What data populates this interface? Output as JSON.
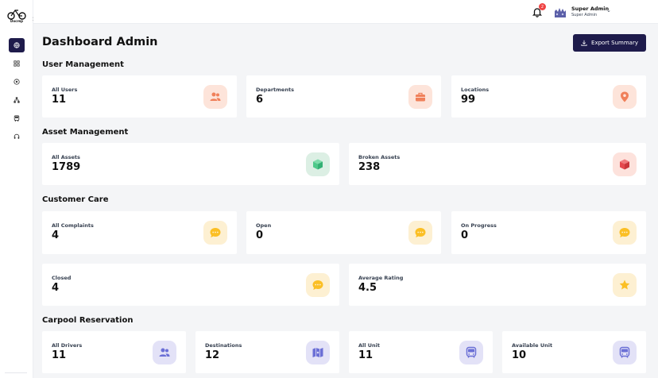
{
  "app": {
    "logo_text": "Docrep"
  },
  "topbar": {
    "notification_count": "2",
    "user_name": "Super Admin",
    "user_role": "Super Admin"
  },
  "header": {
    "title": "Dashboard Admin",
    "export_label": "Export Summary"
  },
  "sections": {
    "user_management": {
      "title": "User Management",
      "cards": [
        {
          "label": "All Users",
          "value": "11",
          "icon": "users-icon"
        },
        {
          "label": "Departments",
          "value": "6",
          "icon": "briefcase-icon"
        },
        {
          "label": "Locations",
          "value": "99",
          "icon": "location-pin-icon"
        }
      ]
    },
    "asset_management": {
      "title": "Asset Management",
      "cards": [
        {
          "label": "All Assets",
          "value": "1789",
          "icon": "cube-icon"
        },
        {
          "label": "Broken Assets",
          "value": "238",
          "icon": "cube-icon"
        }
      ]
    },
    "customer_care": {
      "title": "Customer Care",
      "cards": [
        {
          "label": "All Complaints",
          "value": "4",
          "icon": "chat-icon"
        },
        {
          "label": "Open",
          "value": "0",
          "icon": "chat-icon"
        },
        {
          "label": "On Progress",
          "value": "0",
          "icon": "chat-icon"
        },
        {
          "label": "Closed",
          "value": "4",
          "icon": "chat-icon"
        },
        {
          "label": "Average Rating",
          "value": "4.5",
          "icon": "star-icon"
        }
      ]
    },
    "carpool": {
      "title": "Carpool Reservation",
      "cards": [
        {
          "label": "All Drivers",
          "value": "11",
          "icon": "users-icon"
        },
        {
          "label": "Destinations",
          "value": "12",
          "icon": "map-icon"
        },
        {
          "label": "All Unit",
          "value": "11",
          "icon": "bus-icon"
        },
        {
          "label": "Available Unit",
          "value": "10",
          "icon": "bus-icon"
        }
      ]
    }
  },
  "colors": {
    "primary": "#1e1b4b",
    "orange": "#f0805a",
    "green": "#4ec98a",
    "red": "#e5484d",
    "yellow": "#fbbf24",
    "indigo": "#6b6fd6"
  }
}
